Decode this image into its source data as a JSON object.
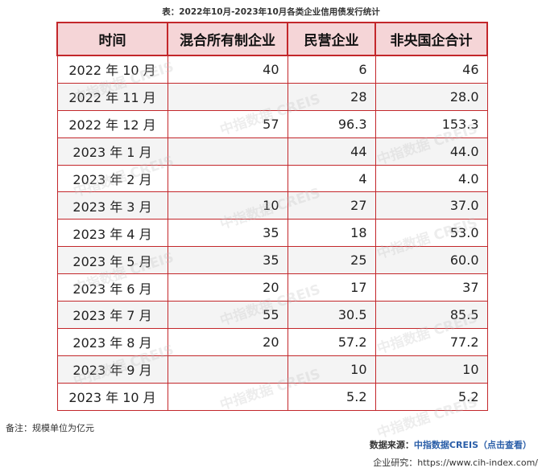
{
  "title": "表：2022年10月-2023年10月各类企业信用债发行统计",
  "headers": [
    "时间",
    "混合所有制企业",
    "民营企业",
    "非央国企合计"
  ],
  "rows": [
    [
      "2022 年 10 月",
      "40",
      "6",
      "46"
    ],
    [
      "2022 年 11 月",
      "",
      "28",
      "28.0"
    ],
    [
      "2022 年 12 月",
      "57",
      "96.3",
      "153.3"
    ],
    [
      "2023 年 1 月",
      "",
      "44",
      "44.0"
    ],
    [
      "2023 年 2 月",
      "",
      "4",
      "4.0"
    ],
    [
      "2023 年 3 月",
      "10",
      "27",
      "37.0"
    ],
    [
      "2023 年 4 月",
      "35",
      "18",
      "53.0"
    ],
    [
      "2023 年 5 月",
      "35",
      "25",
      "60.0"
    ],
    [
      "2023 年 6 月",
      "20",
      "17",
      "37"
    ],
    [
      "2023 年 7 月",
      "55",
      "30.5",
      "85.5"
    ],
    [
      "2023 年 8 月",
      "20",
      "57.2",
      "77.2"
    ],
    [
      "2023 年 9 月",
      "",
      "10",
      "10"
    ],
    [
      "2023 年 10 月",
      "",
      "5.2",
      "5.2"
    ]
  ],
  "watermark": "中指数据 CREIS",
  "note": "备注：规模单位为亿元",
  "source_label": "数据来源：",
  "source_brand": "中指数据CREIS（点击查看）",
  "research": "企业研究：https://www.cih-index.com/",
  "colors": {
    "border": "#c3272b",
    "header_bg": "#f5d5d7",
    "brand": "#2a5ea8"
  }
}
